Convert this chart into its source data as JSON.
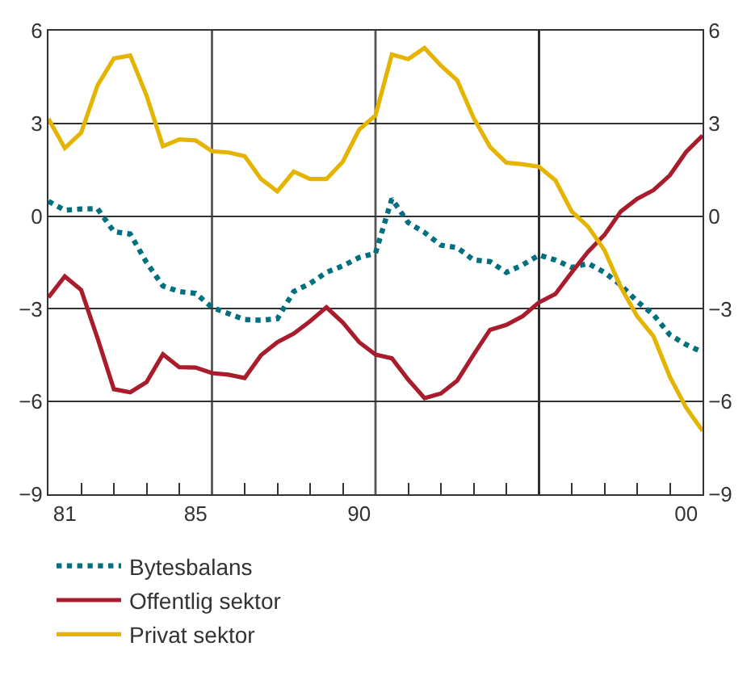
{
  "chart_data": {
    "type": "line",
    "x": [
      1980.5,
      1981.0,
      1981.5,
      1982.0,
      1982.5,
      1983.0,
      1983.5,
      1984.0,
      1984.5,
      1985.0,
      1985.5,
      1986.0,
      1986.5,
      1987.0,
      1987.5,
      1988.0,
      1988.5,
      1989.0,
      1989.5,
      1990.0,
      1990.5,
      1991.0,
      1991.5,
      1992.0,
      1992.5,
      1993.0,
      1993.5,
      1994.0,
      1994.5,
      1995.0,
      1995.5,
      1996.0,
      1996.5,
      1997.0,
      1997.5,
      1998.0,
      1998.5,
      1999.0,
      1999.5,
      2000.0,
      2000.5
    ],
    "series": [
      {
        "name": "Bytesbalans",
        "color": "#00707f",
        "line_style": "dotted",
        "values": [
          0.48,
          0.19,
          0.23,
          0.24,
          -0.5,
          -0.58,
          -1.5,
          -2.26,
          -2.44,
          -2.5,
          -2.95,
          -3.15,
          -3.35,
          -3.37,
          -3.32,
          -2.44,
          -2.18,
          -1.82,
          -1.61,
          -1.34,
          -1.2,
          0.56,
          -0.21,
          -0.53,
          -0.94,
          -1.02,
          -1.42,
          -1.47,
          -1.82,
          -1.58,
          -1.26,
          -1.42,
          -1.66,
          -1.53,
          -1.82,
          -2.23,
          -2.76,
          -3.19,
          -3.84,
          -4.16,
          -4.4
        ]
      },
      {
        "name": "Offentlig sektor",
        "color": "#a81c2c",
        "line_style": "solid",
        "values": [
          -2.63,
          -1.95,
          -2.39,
          -3.95,
          -5.6,
          -5.7,
          -5.37,
          -4.47,
          -4.89,
          -4.9,
          -5.08,
          -5.13,
          -5.24,
          -4.5,
          -4.08,
          -3.8,
          -3.4,
          -2.95,
          -3.44,
          -4.08,
          -4.48,
          -4.6,
          -5.29,
          -5.89,
          -5.74,
          -5.32,
          -4.48,
          -3.68,
          -3.52,
          -3.24,
          -2.79,
          -2.52,
          -1.82,
          -1.15,
          -0.61,
          0.15,
          0.56,
          0.84,
          1.32,
          2.08,
          2.61
        ]
      },
      {
        "name": "Privat sektor",
        "color": "#e5b400",
        "line_style": "solid",
        "values": [
          3.15,
          2.2,
          2.7,
          4.23,
          5.1,
          5.2,
          3.9,
          2.26,
          2.48,
          2.45,
          2.1,
          2.06,
          1.94,
          1.2,
          0.8,
          1.44,
          1.2,
          1.2,
          1.76,
          2.8,
          3.26,
          5.23,
          5.08,
          5.44,
          4.87,
          4.39,
          3.18,
          2.24,
          1.73,
          1.68,
          1.6,
          1.16,
          0.15,
          -0.34,
          -1.1,
          -2.3,
          -3.24,
          -3.89,
          -5.2,
          -6.2,
          -6.95
        ]
      }
    ],
    "xlim": [
      1980.5,
      2000.5
    ],
    "xticks": [
      {
        "value": 1981,
        "label": "81"
      },
      {
        "value": 1985,
        "label": "85"
      },
      {
        "value": 1990,
        "label": "90"
      },
      {
        "value": 2000,
        "label": "00"
      },
      {
        "value": 1981.5,
        "label": null
      },
      {
        "value": 1982.5,
        "label": null
      },
      {
        "value": 1983.5,
        "label": null
      },
      {
        "value": 1984.5,
        "label": null
      },
      {
        "value": 1986.5,
        "label": null
      },
      {
        "value": 1987.5,
        "label": null
      },
      {
        "value": 1988.5,
        "label": null
      },
      {
        "value": 1989.5,
        "label": null
      },
      {
        "value": 1991.5,
        "label": null
      },
      {
        "value": 1992.5,
        "label": null
      },
      {
        "value": 1993.5,
        "label": null
      },
      {
        "value": 1994.5,
        "label": null
      },
      {
        "value": 1996.5,
        "label": null
      },
      {
        "value": 1997.5,
        "label": null
      },
      {
        "value": 1998.5,
        "label": null
      },
      {
        "value": 1999.5,
        "label": null
      }
    ],
    "ylim": [
      -9,
      6
    ],
    "yticks": [
      {
        "value": -9,
        "label": "−9"
      },
      {
        "value": -6,
        "label": "−6"
      },
      {
        "value": -3,
        "label": "−3"
      },
      0,
      3,
      6
    ],
    "y2lim": [
      -9,
      6
    ],
    "y2ticks": [
      {
        "value": -9,
        "label": "−9"
      },
      {
        "value": -6,
        "label": "−6"
      },
      {
        "value": -3,
        "label": "−3"
      },
      0,
      3,
      6
    ],
    "ref_lines": [
      {
        "axis": "x",
        "value": 1985.5,
        "color": "#555555"
      },
      {
        "axis": "x",
        "value": 1990.5,
        "color": "#555555"
      },
      {
        "axis": "x",
        "value": 1995.5,
        "color": "#222222"
      }
    ],
    "grid": "y",
    "legend": "bottom",
    "marker": "none"
  }
}
